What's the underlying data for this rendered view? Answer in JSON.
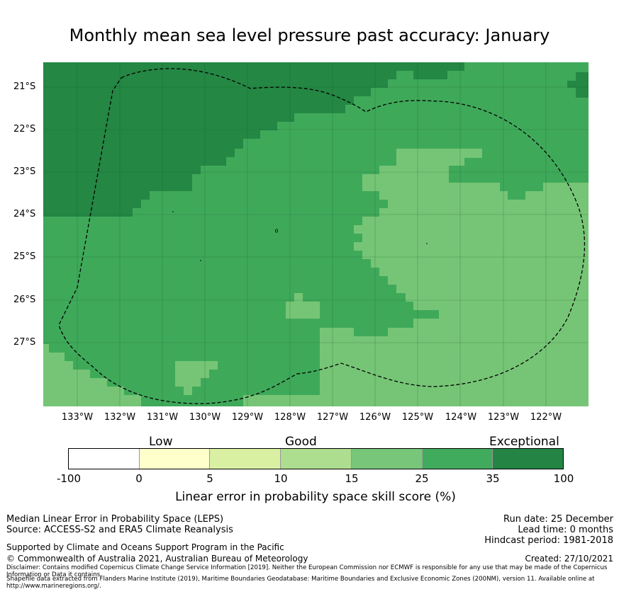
{
  "title": "Monthly mean sea level pressure past accuracy: January",
  "map": {
    "y_labels": [
      "21°S",
      "22°S",
      "23°S",
      "24°S",
      "25°S",
      "26°S",
      "27°S"
    ],
    "x_labels": [
      "133°W",
      "132°W",
      "131°W",
      "130°W",
      "129°W",
      "128°W",
      "127°W",
      "126°W",
      "125°W",
      "124°W",
      "123°W",
      "122°W"
    ],
    "lat_range": [
      -28.5,
      -20.5
    ],
    "lon_range": [
      -133.8,
      -121.0
    ],
    "skill_classes": {
      "exceptional": "#248744",
      "very_good": "#3fa95a",
      "good": "#76c576"
    }
  },
  "colorbar": {
    "category_labels": [
      "Low",
      "Good",
      "Exceptional"
    ],
    "ticks": [
      "-100",
      "0",
      "5",
      "10",
      "15",
      "25",
      "35",
      "100"
    ],
    "colors": [
      "#ffffff",
      "#ffffcc",
      "#d9f0a3",
      "#addd8e",
      "#78c679",
      "#41ab5d",
      "#238443"
    ],
    "title": "Linear error in probability space skill score (%)"
  },
  "footer": {
    "left1": "Median Linear Error in Probability Space (LEPS)",
    "left2": "Source: ACCESS-S2 and ERA5 Climate Reanalysis",
    "support": "Supported by Climate and Oceans Support Program in the Pacific",
    "copyright": "© Commonwealth of Australia 2021, Australian Bureau of Meteorology",
    "disclaimer": "Disclaimer: Contains modified Copernicus Climate Change Service Information [2019]. Neither the European Commission nor ECMWF is responsible for any use that may be made of the Copernicus Information or Data it contains.",
    "shapefile": "Shapefile data extracted from Flanders Marine Institute (2019), Maritime Boundaries Geodatabase: Maritime Boundaries and Exclusive Economic Zones (200NM), version 11. Available online at http://www.marineregions.org/.",
    "run_date": "Run date: 25 December",
    "lead_time": "Lead time: 0 months",
    "hindcast": "Hindcast period: 1981-2018",
    "created": "Created: 27/10/2021"
  }
}
